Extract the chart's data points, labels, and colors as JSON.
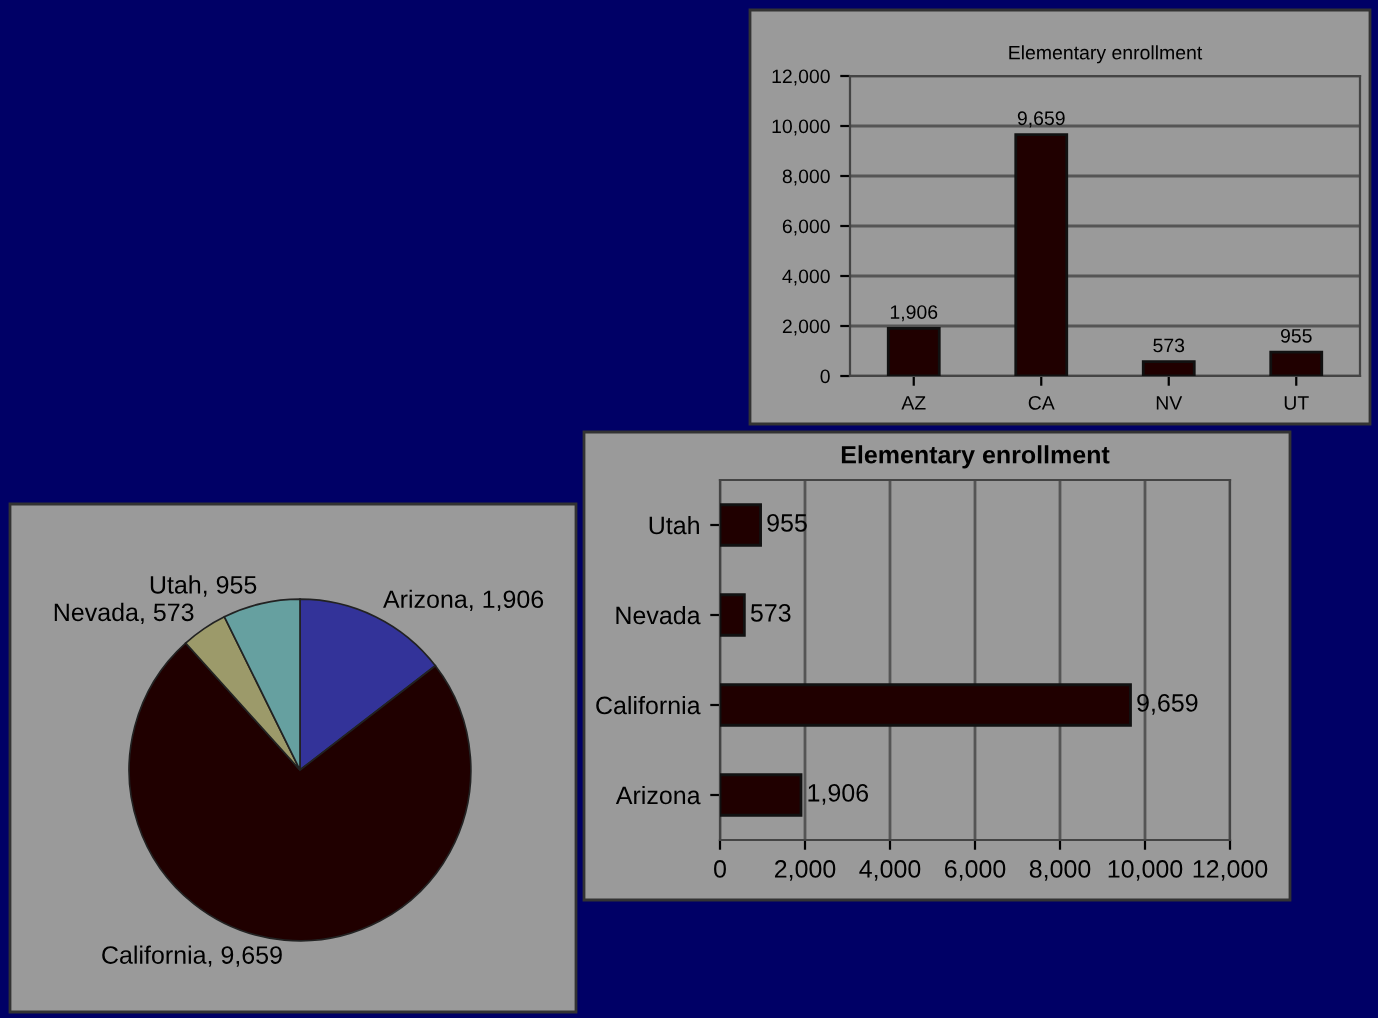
{
  "chart_data": [
    {
      "type": "bar",
      "title": "Elementary enrollment",
      "categories": [
        "AZ",
        "CA",
        "NV",
        "UT"
      ],
      "values": [
        1906,
        9659,
        573,
        955
      ],
      "color": "#200000",
      "value_labels": [
        "1,906",
        "9,659",
        "573",
        "955"
      ],
      "ylim": [
        0,
        12000
      ],
      "yticks": [
        0,
        {
          "value": 2000,
          "label": "2,000"
        },
        {
          "value": 4000,
          "label": "4,000"
        },
        {
          "value": 6000,
          "label": "6,000"
        },
        {
          "value": 8000,
          "label": "8,000"
        },
        {
          "value": 10000,
          "label": "10,000"
        },
        {
          "value": 12000,
          "label": "12,000"
        }
      ],
      "grid": "y"
    },
    {
      "type": "bar",
      "orientation": "horizontal",
      "title": "Elementary enrollment",
      "categories": [
        "Utah",
        "Nevada",
        "California",
        "Arizona"
      ],
      "values": [
        955,
        573,
        9659,
        1906
      ],
      "color": "#200000",
      "value_labels": [
        "955",
        "573",
        "9,659",
        "1,906"
      ],
      "xlim": [
        0,
        12000
      ],
      "xticks": [
        0,
        {
          "value": 2000,
          "label": "2,000"
        },
        {
          "value": 4000,
          "label": "4,000"
        },
        {
          "value": 6000,
          "label": "6,000"
        },
        {
          "value": 8000,
          "label": "8,000"
        },
        {
          "value": 10000,
          "label": "10,000"
        },
        {
          "value": 12000,
          "label": "12,000"
        }
      ],
      "grid": "x"
    },
    {
      "type": "pie",
      "categories": [
        "Arizona",
        "California",
        "Nevada",
        "Utah"
      ],
      "values": [
        1906,
        9659,
        573,
        955
      ],
      "value_labels": [
        "1,906",
        "9,659",
        "573",
        "955"
      ],
      "colors": [
        "#333399",
        "#200000",
        "#9c9a6a",
        "#66a0a0"
      ]
    }
  ]
}
